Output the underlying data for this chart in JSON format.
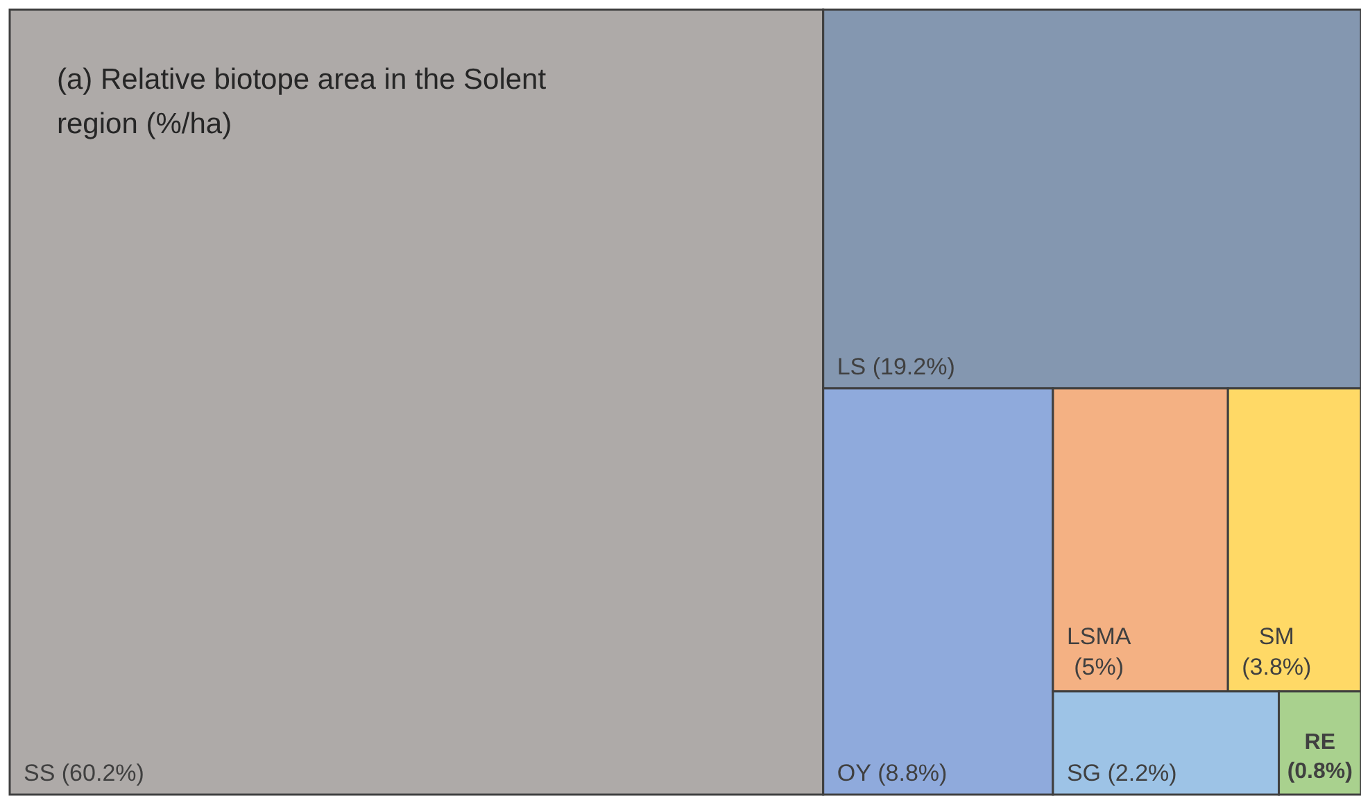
{
  "chart_data": {
    "type": "other",
    "title": "(a) Relative biotope area in the Solent region (%/ha)",
    "categories": [
      "SS",
      "LS",
      "OY",
      "LSMA",
      "SM",
      "SG",
      "RE"
    ],
    "value_labels": [
      "(60.2%)",
      "(19.2%)",
      "(8.8%)",
      "(5%)",
      "(3.8%)",
      "(2.2%)",
      "(0.8%)"
    ],
    "values": [
      60.2,
      19.2,
      8.8,
      5,
      3.8,
      2.2,
      0.8
    ],
    "colors": [
      "#aeaaa8",
      "#8497b0",
      "#8faadc",
      "#f4b183",
      "#ffd966",
      "#9dc3e6",
      "#a9d18e"
    ]
  }
}
